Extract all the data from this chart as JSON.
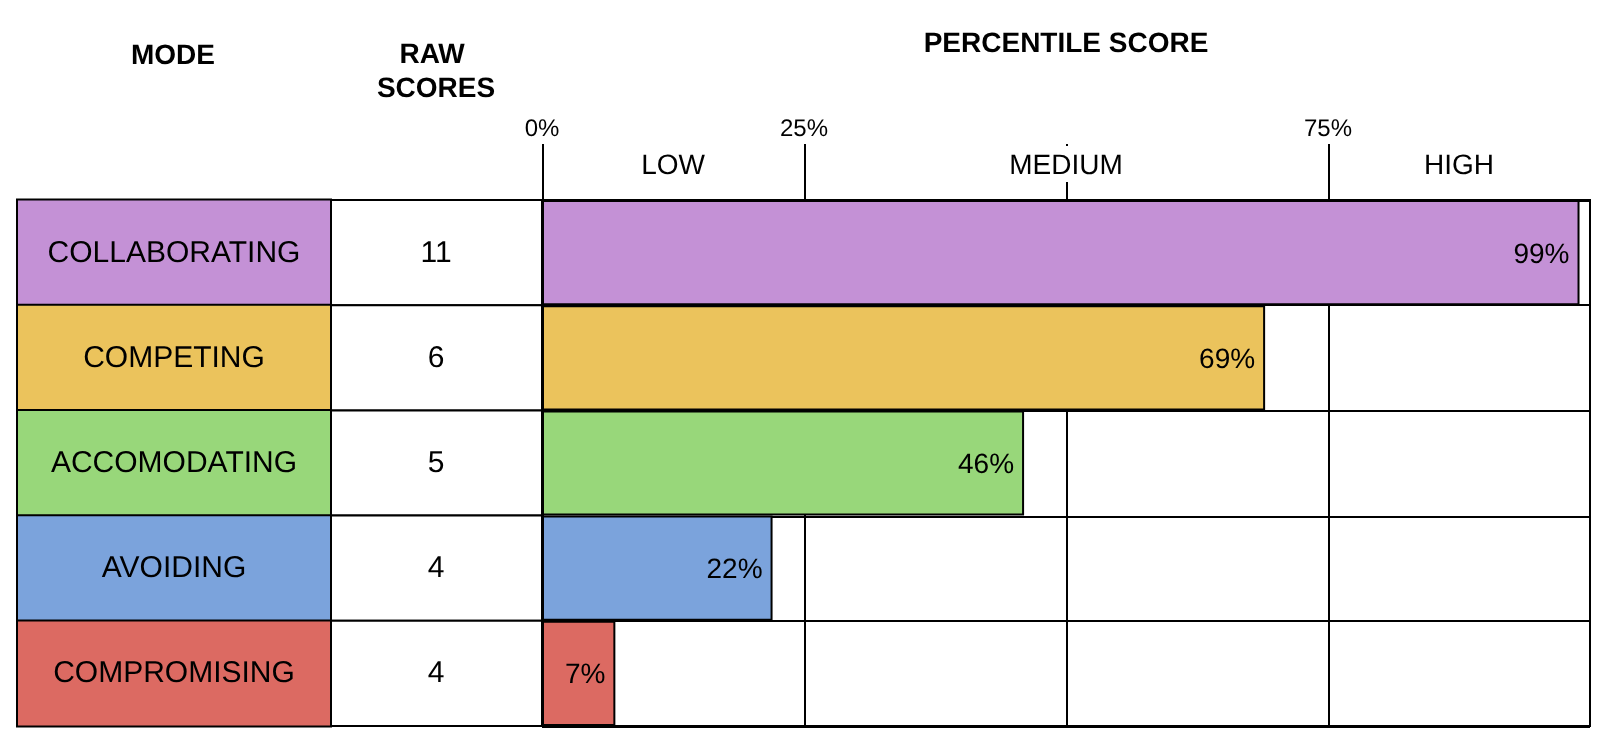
{
  "chart_data": {
    "type": "bar",
    "orientation": "horizontal",
    "xlabel": "PERCENTILE SCORE",
    "ylabel": "MODE",
    "categories": [
      "COLLABORATING",
      "COMPETING",
      "ACCOMODATING",
      "AVOIDING",
      "COMPROMISING"
    ],
    "values": [
      99,
      69,
      46,
      22,
      7
    ],
    "value_labels": [
      "99%",
      "69%",
      "46%",
      "22%",
      "7%"
    ],
    "colors": [
      "#c491d6",
      "#ebc35c",
      "#98d77a",
      "#7ba3dc",
      "#dc6a62"
    ],
    "xlim": [
      0,
      100
    ],
    "xticks": [
      {
        "value": 0,
        "label": "0%"
      },
      {
        "value": 25,
        "label": "25%"
      },
      {
        "value": 50,
        "label": null
      },
      {
        "value": 75,
        "label": "75%"
      }
    ],
    "grid": true,
    "annotations": [
      "RAW SCORES",
      "11",
      "6",
      "5",
      "4",
      "4",
      "LOW",
      "MEDIUM",
      "HIGH"
    ]
  }
}
